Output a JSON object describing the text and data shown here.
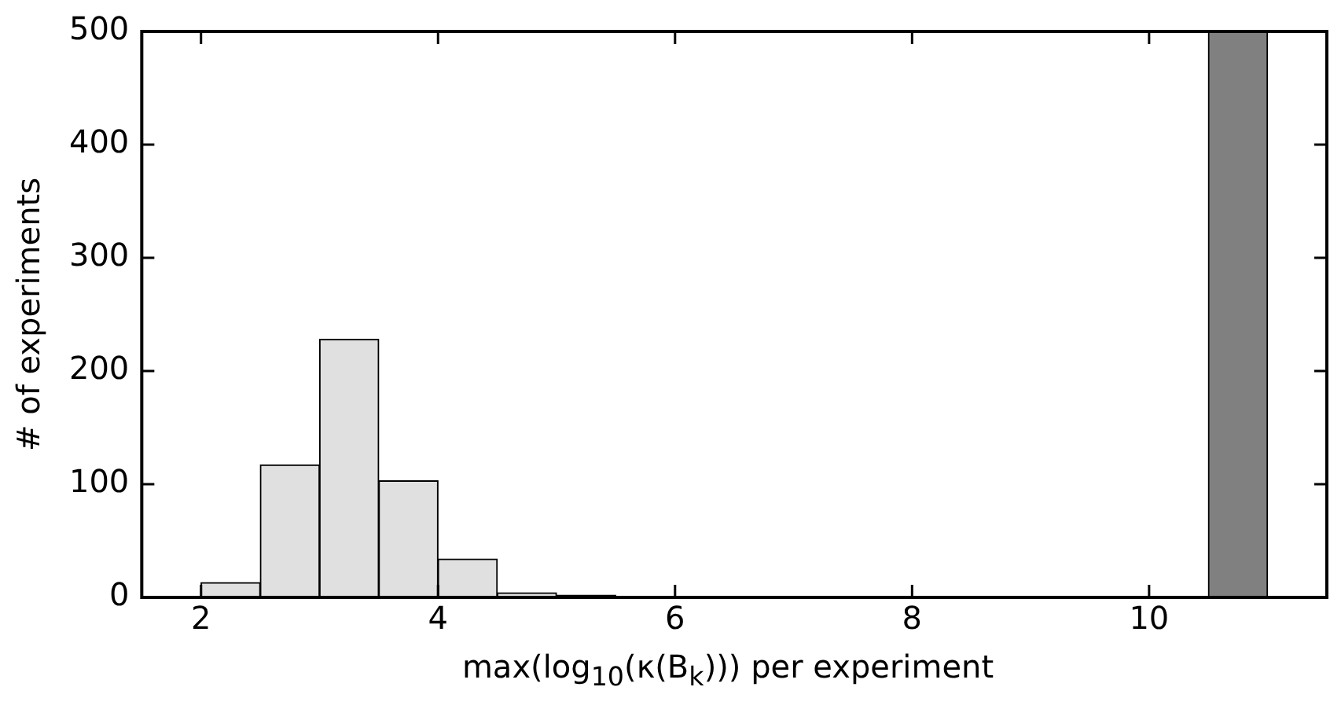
{
  "chart_data": {
    "type": "histogram",
    "bins": [
      2,
      2.5,
      3,
      3.5,
      4,
      4.5,
      5,
      5.5,
      6,
      6.5,
      7,
      7.5,
      8,
      8.5,
      9,
      9.5,
      10,
      10.5,
      11
    ],
    "values": [
      13,
      117,
      228,
      103,
      34,
      4,
      2,
      0,
      0,
      0,
      0,
      0,
      0,
      0,
      0,
      0,
      0,
      500
    ],
    "colors": [
      "#e0e0e0",
      "#e0e0e0",
      "#e0e0e0",
      "#e0e0e0",
      "#e0e0e0",
      "#e0e0e0",
      "#e0e0e0",
      "#e0e0e0",
      "#e0e0e0",
      "#e0e0e0",
      "#e0e0e0",
      "#e0e0e0",
      "#e0e0e0",
      "#e0e0e0",
      "#e0e0e0",
      "#e0e0e0",
      "#e0e0e0",
      "#808080"
    ],
    "xlabel": "max(log$_{10}$(κ(B$_{k}$))) per experiment",
    "ylabel": "# of experiments",
    "xlim": [
      1.5,
      11.5
    ],
    "xticks": [
      2,
      4,
      6,
      8,
      10
    ],
    "ylim": [
      0,
      500
    ],
    "yticks": [
      0,
      100,
      200,
      300,
      400,
      500
    ],
    "grid": false,
    "legend": false
  }
}
